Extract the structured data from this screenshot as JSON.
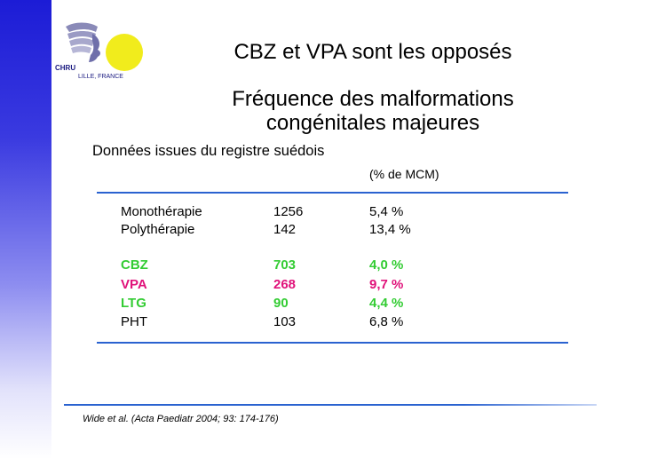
{
  "logo": {
    "text_top": "CHRU",
    "text_bottom": "LILLE, FRANCE",
    "icon": "chru-lille-logo-icon"
  },
  "title": {
    "line1": "CBZ et VPA sont les opposés",
    "line2": "Fréquence des malformations",
    "line3": "congénitales majeures"
  },
  "subtitle": "Données issues du registre suédois",
  "unit_header": "(% de MCM)",
  "rows": [
    {
      "label": "Monothérapie",
      "n": "1256",
      "pct": "5,4 %",
      "color": "#000000",
      "bold": false
    },
    {
      "label": "Polythérapie",
      "n": "142",
      "pct": "13,4 %",
      "color": "#000000",
      "bold": false
    },
    {
      "label": "CBZ",
      "n": "703",
      "pct": "4,0 %",
      "color": "#33cc33",
      "bold": true
    },
    {
      "label": "VPA",
      "n": "268",
      "pct": "9,7 %",
      "color": "#e0127a",
      "bold": true
    },
    {
      "label": "LTG",
      "n": "90",
      "pct": "4,4 %",
      "color": "#33cc33",
      "bold": true
    },
    {
      "label": "PHT",
      "n": "103",
      "pct": "6,8 %",
      "color": "#000000",
      "bold": false
    }
  ],
  "footer": "Wide et al. (Acta Paediatr 2004; 93: 174-176)",
  "colors": {
    "accent_blue": "#2a62d0",
    "left_bar": "#1c1cd6",
    "logo_sun": "#f1ec1c"
  }
}
